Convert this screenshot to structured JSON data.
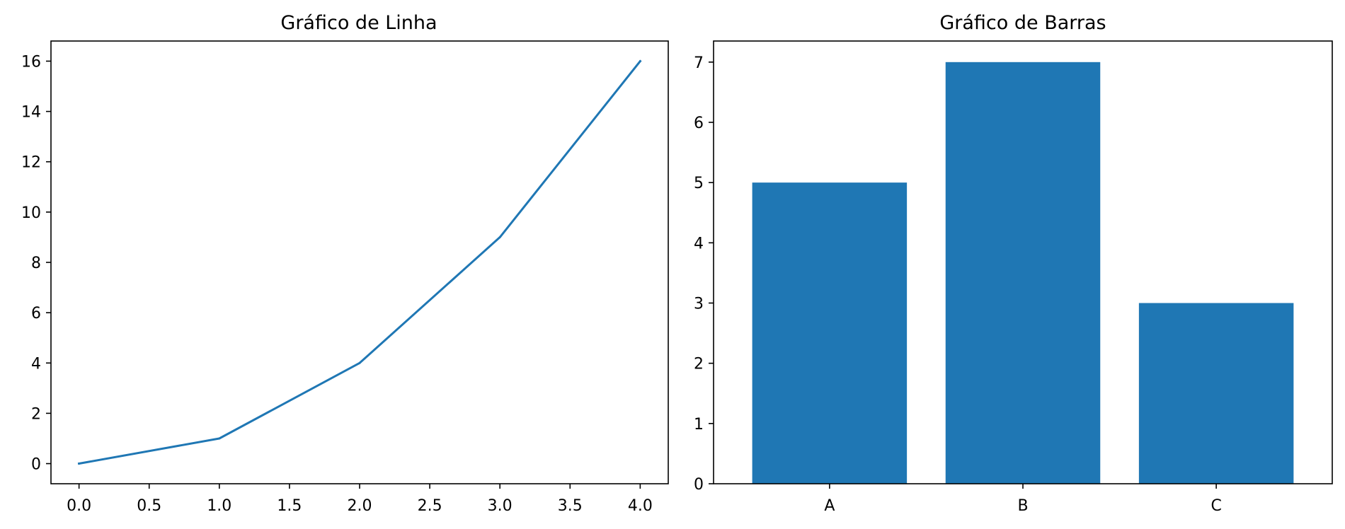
{
  "figure": {
    "background": "#ffffff"
  },
  "chart_data": [
    {
      "type": "line",
      "title": "Gráfico de Linha",
      "xlabel": "",
      "ylabel": "",
      "x": [
        0,
        1,
        2,
        3,
        4
      ],
      "series": [
        {
          "values": [
            0,
            1,
            4,
            9,
            16
          ],
          "color": "#1f77b4"
        }
      ],
      "xlim": [
        -0.2,
        4.2
      ],
      "ylim": [
        -0.8,
        16.8
      ],
      "xticks": [
        0,
        0.5,
        1,
        1.5,
        2,
        2.5,
        3,
        3.5,
        4
      ],
      "xtick_labels": [
        "0.0",
        "0.5",
        "1.0",
        "1.5",
        "2.0",
        "2.5",
        "3.0",
        "3.5",
        "4.0"
      ],
      "yticks": [
        0,
        2,
        4,
        6,
        8,
        10,
        12,
        14,
        16
      ],
      "ytick_labels": [
        "0",
        "2",
        "4",
        "6",
        "8",
        "10",
        "12",
        "14",
        "16"
      ],
      "grid": false,
      "legend": "none"
    },
    {
      "type": "bar",
      "title": "Gráfico de Barras",
      "xlabel": "",
      "ylabel": "",
      "categories": [
        "A",
        "B",
        "C"
      ],
      "values": [
        5,
        7,
        3
      ],
      "color": "#1f77b4",
      "ylim": [
        0,
        7.35
      ],
      "yticks": [
        0,
        1,
        2,
        3,
        4,
        5,
        6,
        7
      ],
      "ytick_labels": [
        "0",
        "1",
        "2",
        "3",
        "4",
        "5",
        "6",
        "7"
      ],
      "grid": false,
      "legend": "none"
    }
  ]
}
